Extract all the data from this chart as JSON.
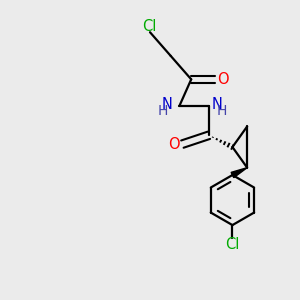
{
  "background_color": "#ebebeb",
  "atom_colors": {
    "C": "#000000",
    "N": "#0000cc",
    "O": "#ff0000",
    "Cl": "#00aa00",
    "H": "#4444aa"
  },
  "bond_color": "#000000",
  "figsize": [
    3.0,
    3.0
  ],
  "dpi": 100
}
